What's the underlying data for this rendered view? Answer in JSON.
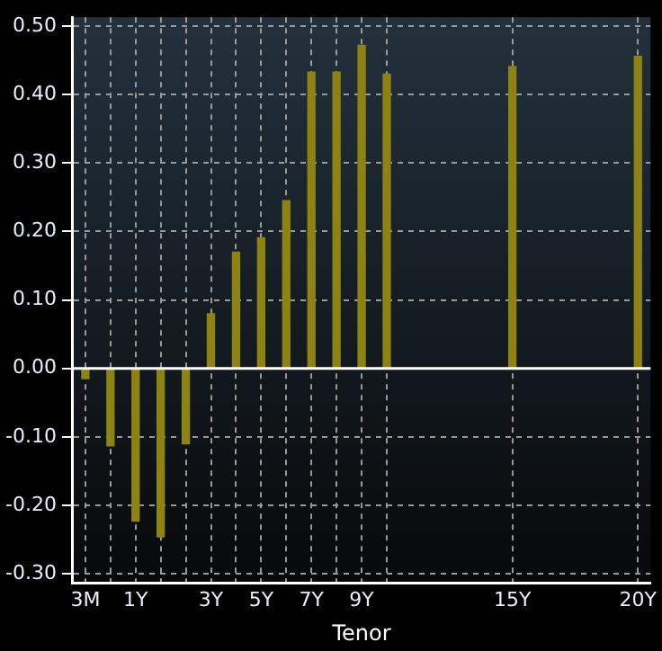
{
  "chart_data": {
    "type": "bar",
    "xlabel": "Tenor",
    "categories": [
      "3M",
      null,
      "1Y",
      null,
      null,
      "3Y",
      null,
      "5Y",
      null,
      "7Y",
      null,
      "9Y",
      null,
      null,
      null,
      null,
      null,
      "15Y",
      null,
      null,
      null,
      null,
      "20Y"
    ],
    "values": [
      -0.015,
      -0.113,
      -0.223,
      -0.246,
      -0.11,
      0.08,
      0.17,
      0.191,
      0.245,
      0.433,
      0.433,
      0.472,
      0.43,
      null,
      null,
      null,
      null,
      0.441,
      null,
      null,
      null,
      null,
      0.456
    ],
    "color": "#8c8312",
    "ylim": [
      -0.314,
      0.513
    ],
    "yticks": [
      {
        "value": -0.3,
        "label": "-0.30"
      },
      {
        "value": -0.2,
        "label": "-0.20"
      },
      {
        "value": -0.1,
        "label": "-0.10"
      },
      {
        "value": 0,
        "label": "0.00"
      },
      {
        "value": 0.1,
        "label": "0.10"
      },
      {
        "value": 0.2,
        "label": "0.20"
      },
      {
        "value": 0.3,
        "label": "0.30"
      },
      {
        "value": 0.4,
        "label": "0.40"
      },
      {
        "value": 0.5,
        "label": "0.50"
      }
    ],
    "ref_lines": [
      {
        "axis": "y",
        "value": 0,
        "color": "#ffffff"
      }
    ],
    "grid": true,
    "legend": false
  }
}
